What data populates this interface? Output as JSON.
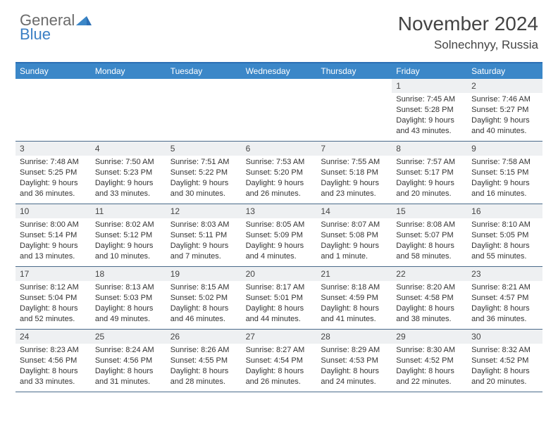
{
  "logo": {
    "general": "General",
    "blue": "Blue"
  },
  "title": "November 2024",
  "location": "Solnechnyy, Russia",
  "colors": {
    "header_bar": "#3b87c8",
    "header_border": "#2c6fb5",
    "row_border": "#4a6a8a",
    "daynum_bg": "#eef0f2",
    "logo_gray": "#6b6b6b",
    "logo_blue": "#3b7fc4"
  },
  "weekdays": [
    "Sunday",
    "Monday",
    "Tuesday",
    "Wednesday",
    "Thursday",
    "Friday",
    "Saturday"
  ],
  "weeks": [
    [
      null,
      null,
      null,
      null,
      null,
      {
        "n": "1",
        "sunrise": "Sunrise: 7:45 AM",
        "sunset": "Sunset: 5:28 PM",
        "daylight": "Daylight: 9 hours and 43 minutes."
      },
      {
        "n": "2",
        "sunrise": "Sunrise: 7:46 AM",
        "sunset": "Sunset: 5:27 PM",
        "daylight": "Daylight: 9 hours and 40 minutes."
      }
    ],
    [
      {
        "n": "3",
        "sunrise": "Sunrise: 7:48 AM",
        "sunset": "Sunset: 5:25 PM",
        "daylight": "Daylight: 9 hours and 36 minutes."
      },
      {
        "n": "4",
        "sunrise": "Sunrise: 7:50 AM",
        "sunset": "Sunset: 5:23 PM",
        "daylight": "Daylight: 9 hours and 33 minutes."
      },
      {
        "n": "5",
        "sunrise": "Sunrise: 7:51 AM",
        "sunset": "Sunset: 5:22 PM",
        "daylight": "Daylight: 9 hours and 30 minutes."
      },
      {
        "n": "6",
        "sunrise": "Sunrise: 7:53 AM",
        "sunset": "Sunset: 5:20 PM",
        "daylight": "Daylight: 9 hours and 26 minutes."
      },
      {
        "n": "7",
        "sunrise": "Sunrise: 7:55 AM",
        "sunset": "Sunset: 5:18 PM",
        "daylight": "Daylight: 9 hours and 23 minutes."
      },
      {
        "n": "8",
        "sunrise": "Sunrise: 7:57 AM",
        "sunset": "Sunset: 5:17 PM",
        "daylight": "Daylight: 9 hours and 20 minutes."
      },
      {
        "n": "9",
        "sunrise": "Sunrise: 7:58 AM",
        "sunset": "Sunset: 5:15 PM",
        "daylight": "Daylight: 9 hours and 16 minutes."
      }
    ],
    [
      {
        "n": "10",
        "sunrise": "Sunrise: 8:00 AM",
        "sunset": "Sunset: 5:14 PM",
        "daylight": "Daylight: 9 hours and 13 minutes."
      },
      {
        "n": "11",
        "sunrise": "Sunrise: 8:02 AM",
        "sunset": "Sunset: 5:12 PM",
        "daylight": "Daylight: 9 hours and 10 minutes."
      },
      {
        "n": "12",
        "sunrise": "Sunrise: 8:03 AM",
        "sunset": "Sunset: 5:11 PM",
        "daylight": "Daylight: 9 hours and 7 minutes."
      },
      {
        "n": "13",
        "sunrise": "Sunrise: 8:05 AM",
        "sunset": "Sunset: 5:09 PM",
        "daylight": "Daylight: 9 hours and 4 minutes."
      },
      {
        "n": "14",
        "sunrise": "Sunrise: 8:07 AM",
        "sunset": "Sunset: 5:08 PM",
        "daylight": "Daylight: 9 hours and 1 minute."
      },
      {
        "n": "15",
        "sunrise": "Sunrise: 8:08 AM",
        "sunset": "Sunset: 5:07 PM",
        "daylight": "Daylight: 8 hours and 58 minutes."
      },
      {
        "n": "16",
        "sunrise": "Sunrise: 8:10 AM",
        "sunset": "Sunset: 5:05 PM",
        "daylight": "Daylight: 8 hours and 55 minutes."
      }
    ],
    [
      {
        "n": "17",
        "sunrise": "Sunrise: 8:12 AM",
        "sunset": "Sunset: 5:04 PM",
        "daylight": "Daylight: 8 hours and 52 minutes."
      },
      {
        "n": "18",
        "sunrise": "Sunrise: 8:13 AM",
        "sunset": "Sunset: 5:03 PM",
        "daylight": "Daylight: 8 hours and 49 minutes."
      },
      {
        "n": "19",
        "sunrise": "Sunrise: 8:15 AM",
        "sunset": "Sunset: 5:02 PM",
        "daylight": "Daylight: 8 hours and 46 minutes."
      },
      {
        "n": "20",
        "sunrise": "Sunrise: 8:17 AM",
        "sunset": "Sunset: 5:01 PM",
        "daylight": "Daylight: 8 hours and 44 minutes."
      },
      {
        "n": "21",
        "sunrise": "Sunrise: 8:18 AM",
        "sunset": "Sunset: 4:59 PM",
        "daylight": "Daylight: 8 hours and 41 minutes."
      },
      {
        "n": "22",
        "sunrise": "Sunrise: 8:20 AM",
        "sunset": "Sunset: 4:58 PM",
        "daylight": "Daylight: 8 hours and 38 minutes."
      },
      {
        "n": "23",
        "sunrise": "Sunrise: 8:21 AM",
        "sunset": "Sunset: 4:57 PM",
        "daylight": "Daylight: 8 hours and 36 minutes."
      }
    ],
    [
      {
        "n": "24",
        "sunrise": "Sunrise: 8:23 AM",
        "sunset": "Sunset: 4:56 PM",
        "daylight": "Daylight: 8 hours and 33 minutes."
      },
      {
        "n": "25",
        "sunrise": "Sunrise: 8:24 AM",
        "sunset": "Sunset: 4:56 PM",
        "daylight": "Daylight: 8 hours and 31 minutes."
      },
      {
        "n": "26",
        "sunrise": "Sunrise: 8:26 AM",
        "sunset": "Sunset: 4:55 PM",
        "daylight": "Daylight: 8 hours and 28 minutes."
      },
      {
        "n": "27",
        "sunrise": "Sunrise: 8:27 AM",
        "sunset": "Sunset: 4:54 PM",
        "daylight": "Daylight: 8 hours and 26 minutes."
      },
      {
        "n": "28",
        "sunrise": "Sunrise: 8:29 AM",
        "sunset": "Sunset: 4:53 PM",
        "daylight": "Daylight: 8 hours and 24 minutes."
      },
      {
        "n": "29",
        "sunrise": "Sunrise: 8:30 AM",
        "sunset": "Sunset: 4:52 PM",
        "daylight": "Daylight: 8 hours and 22 minutes."
      },
      {
        "n": "30",
        "sunrise": "Sunrise: 8:32 AM",
        "sunset": "Sunset: 4:52 PM",
        "daylight": "Daylight: 8 hours and 20 minutes."
      }
    ]
  ]
}
